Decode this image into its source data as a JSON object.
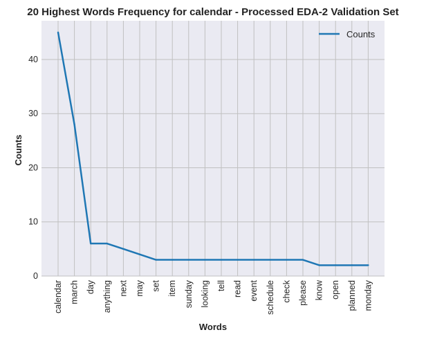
{
  "chart_data": {
    "type": "line",
    "title": "20 Highest Words Frequency for calendar - Processed EDA-2 Validation Set",
    "xlabel": "Words",
    "ylabel": "Counts",
    "categories": [
      "calendar",
      "march",
      "day",
      "anything",
      "next",
      "may",
      "set",
      "item",
      "sunday",
      "looking",
      "tell",
      "read",
      "event",
      "schedule",
      "check",
      "please",
      "know",
      "open",
      "planned",
      "monday"
    ],
    "series": [
      {
        "name": "Counts",
        "values": [
          45,
          28,
          6,
          6,
          5,
          4,
          3,
          3,
          3,
          3,
          3,
          3,
          3,
          3,
          3,
          3,
          2,
          2,
          2,
          2
        ],
        "color": "#1f77b4"
      }
    ],
    "ylim": [
      0,
      47.15
    ],
    "yticks": [
      0,
      10,
      20,
      30,
      40
    ],
    "grid": true,
    "legend_position": "top-right",
    "background_color": "#eaeaf2",
    "grid_color": "#c0c0c0"
  }
}
